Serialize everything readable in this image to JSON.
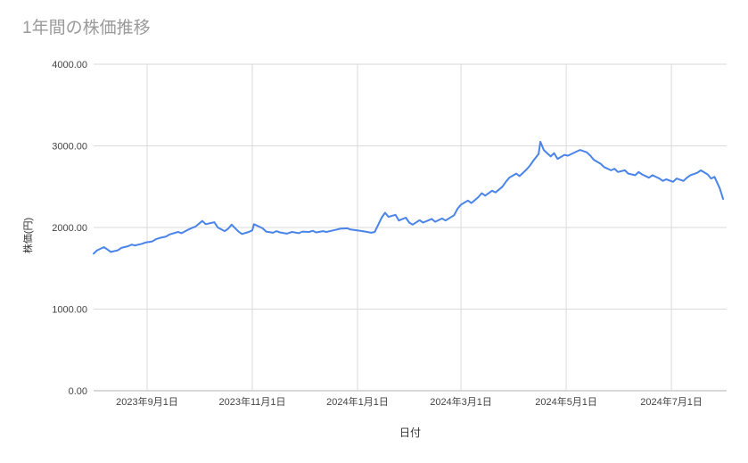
{
  "page": {
    "title": "1年間の株価推移"
  },
  "chart_data": {
    "type": "line",
    "title": "1年間の株価推移",
    "xlabel": "日付",
    "ylabel": "株価(円)",
    "ylim": [
      0,
      4000
    ],
    "y_ticks": [
      0,
      1000,
      2000,
      3000,
      4000
    ],
    "y_tick_labels": [
      "0.00",
      "1000.00",
      "2000.00",
      "3000.00",
      "4000.00"
    ],
    "x_domain": [
      "2023-08-01",
      "2024-08-02"
    ],
    "x_ticks": [
      {
        "label": "2023年9月1日",
        "date": "2023-09-01"
      },
      {
        "label": "2023年11月1日",
        "date": "2023-11-01"
      },
      {
        "label": "2024年1月1日",
        "date": "2024-01-01"
      },
      {
        "label": "2024年3月1日",
        "date": "2024-03-01"
      },
      {
        "label": "2024年5月1日",
        "date": "2024-05-01"
      },
      {
        "label": "2024年7月1日",
        "date": "2024-07-01"
      }
    ],
    "grid_on": true,
    "legend": "none",
    "line_color": "#4a84e8",
    "grid_color": "#dadada",
    "axis_color": "#b0b0b0",
    "x": [
      "2023-08-01",
      "2023-08-03",
      "2023-08-07",
      "2023-08-09",
      "2023-08-11",
      "2023-08-15",
      "2023-08-17",
      "2023-08-21",
      "2023-08-23",
      "2023-08-25",
      "2023-08-29",
      "2023-08-31",
      "2023-09-04",
      "2023-09-06",
      "2023-09-08",
      "2023-09-12",
      "2023-09-14",
      "2023-09-19",
      "2023-09-21",
      "2023-09-25",
      "2023-09-27",
      "2023-09-29",
      "2023-10-03",
      "2023-10-05",
      "2023-10-10",
      "2023-10-12",
      "2023-10-16",
      "2023-10-18",
      "2023-10-20",
      "2023-10-24",
      "2023-10-26",
      "2023-10-30",
      "2023-11-01",
      "2023-11-02",
      "2023-11-07",
      "2023-11-09",
      "2023-11-13",
      "2023-11-15",
      "2023-11-17",
      "2023-11-21",
      "2023-11-24",
      "2023-11-28",
      "2023-11-30",
      "2023-12-04",
      "2023-12-06",
      "2023-12-08",
      "2023-12-12",
      "2023-12-14",
      "2023-12-18",
      "2023-12-20",
      "2023-12-22",
      "2023-12-26",
      "2023-12-28",
      "2024-01-04",
      "2024-01-09",
      "2024-01-11",
      "2024-01-15",
      "2024-01-17",
      "2024-01-19",
      "2024-01-23",
      "2024-01-25",
      "2024-01-29",
      "2024-01-31",
      "2024-02-02",
      "2024-02-06",
      "2024-02-08",
      "2024-02-13",
      "2024-02-15",
      "2024-02-19",
      "2024-02-21",
      "2024-02-26",
      "2024-02-28",
      "2024-03-01",
      "2024-03-05",
      "2024-03-07",
      "2024-03-11",
      "2024-03-13",
      "2024-03-15",
      "2024-03-19",
      "2024-03-21",
      "2024-03-25",
      "2024-03-27",
      "2024-03-29",
      "2024-04-02",
      "2024-04-04",
      "2024-04-08",
      "2024-04-10",
      "2024-04-12",
      "2024-04-15",
      "2024-04-16",
      "2024-04-18",
      "2024-04-22",
      "2024-04-24",
      "2024-04-26",
      "2024-04-30",
      "2024-05-02",
      "2024-05-07",
      "2024-05-09",
      "2024-05-13",
      "2024-05-15",
      "2024-05-17",
      "2024-05-21",
      "2024-05-23",
      "2024-05-27",
      "2024-05-29",
      "2024-05-31",
      "2024-06-04",
      "2024-06-06",
      "2024-06-10",
      "2024-06-12",
      "2024-06-14",
      "2024-06-18",
      "2024-06-20",
      "2024-06-24",
      "2024-06-26",
      "2024-06-28",
      "2024-07-02",
      "2024-07-04",
      "2024-07-08",
      "2024-07-10",
      "2024-07-12",
      "2024-07-16",
      "2024-07-18",
      "2024-07-22",
      "2024-07-24",
      "2024-07-26",
      "2024-07-29",
      "2024-07-31"
    ],
    "values": [
      1680,
      1720,
      1760,
      1730,
      1700,
      1720,
      1750,
      1770,
      1790,
      1780,
      1800,
      1815,
      1830,
      1855,
      1870,
      1890,
      1915,
      1945,
      1930,
      1975,
      1995,
      2010,
      2080,
      2040,
      2065,
      2000,
      1955,
      1985,
      2035,
      1950,
      1920,
      1945,
      1965,
      2040,
      1990,
      1950,
      1935,
      1955,
      1940,
      1925,
      1945,
      1930,
      1950,
      1945,
      1960,
      1940,
      1955,
      1945,
      1965,
      1975,
      1985,
      1990,
      1975,
      1955,
      1935,
      1945,
      2120,
      2180,
      2130,
      2155,
      2085,
      2120,
      2060,
      2035,
      2090,
      2060,
      2105,
      2070,
      2110,
      2085,
      2150,
      2230,
      2280,
      2330,
      2300,
      2370,
      2420,
      2390,
      2450,
      2430,
      2500,
      2560,
      2610,
      2660,
      2630,
      2710,
      2760,
      2820,
      2900,
      3050,
      2950,
      2870,
      2910,
      2840,
      2890,
      2880,
      2930,
      2950,
      2920,
      2880,
      2830,
      2780,
      2740,
      2700,
      2720,
      2680,
      2700,
      2660,
      2640,
      2680,
      2650,
      2610,
      2640,
      2600,
      2570,
      2590,
      2560,
      2600,
      2570,
      2610,
      2640,
      2670,
      2700,
      2650,
      2600,
      2620,
      2480,
      2350
    ]
  }
}
